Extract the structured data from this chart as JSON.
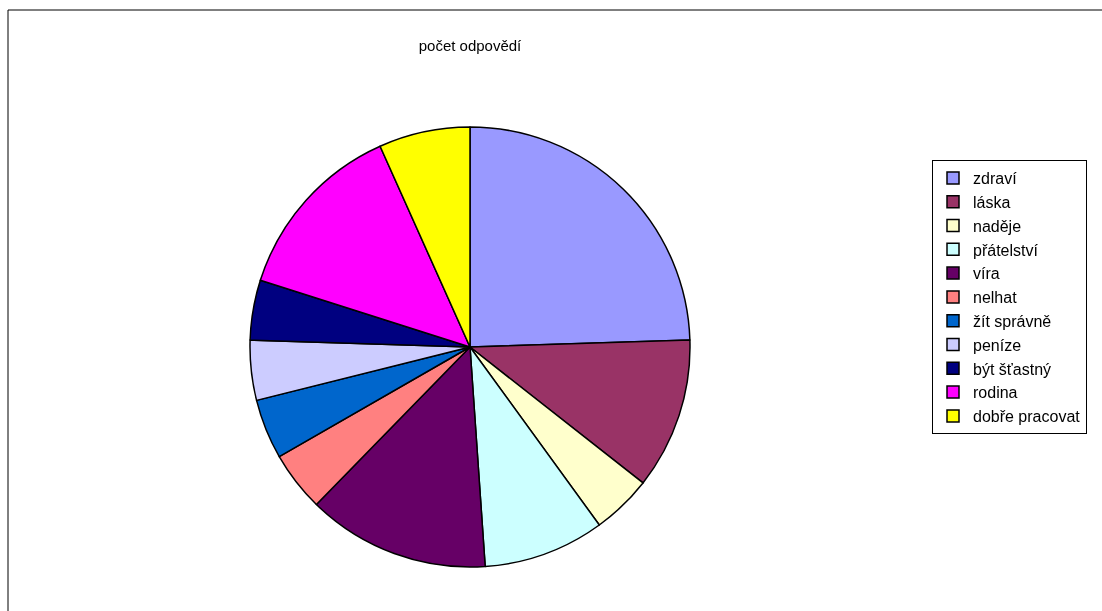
{
  "chart_data": {
    "type": "pie",
    "title": "počet odpovědí",
    "categories": [
      "zdraví",
      "láska",
      "naděje",
      "přátelství",
      "víra",
      "nelhat",
      "žít správně",
      "peníze",
      "být šťastný",
      "rodina",
      "dobře pracovat"
    ],
    "values": [
      24.5,
      11.1,
      4.4,
      8.9,
      13.4,
      4.4,
      4.4,
      4.4,
      4.4,
      13.4,
      6.7
    ],
    "colors": [
      "#9999ff",
      "#993366",
      "#ffffcc",
      "#ccffff",
      "#660066",
      "#ff8080",
      "#0066cc",
      "#ccccff",
      "#000080",
      "#ff00ff",
      "#ffff00"
    ],
    "legend": "right"
  }
}
